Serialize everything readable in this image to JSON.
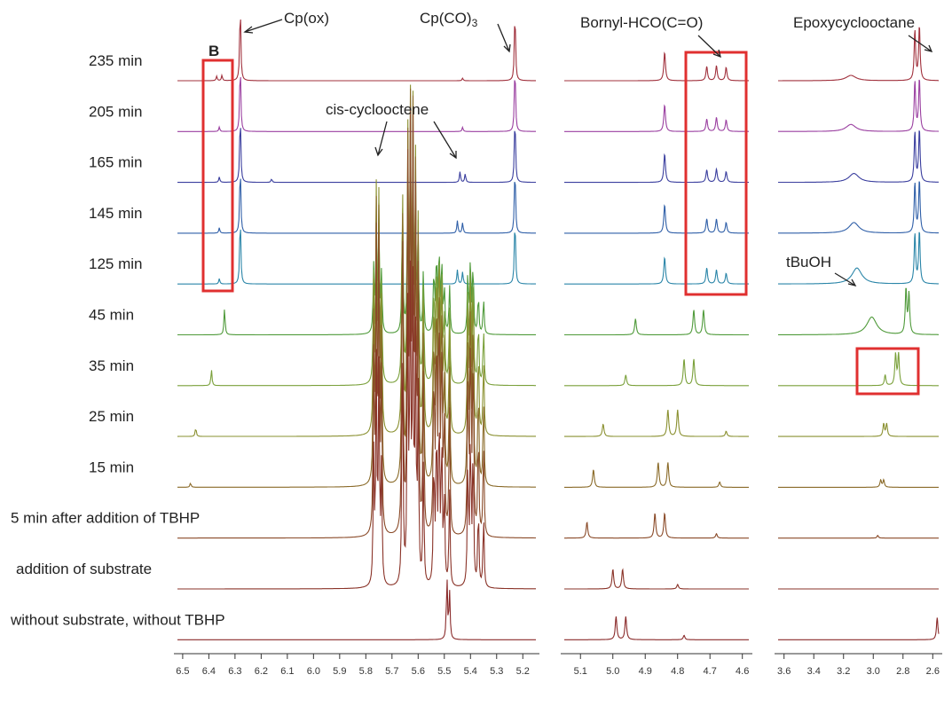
{
  "chart_data": {
    "type": "line",
    "title": "",
    "xlabel": "",
    "ylabel": "",
    "panels": [
      {
        "id": "left",
        "xlim": [
          6.52,
          5.15
        ],
        "ticks": [
          "6.5",
          "6.4",
          "6.3",
          "6.2",
          "6.1",
          "6.0",
          "5.9",
          "5.8",
          "5.7",
          "5.6",
          "5.5",
          "5.4",
          "5.3",
          "5.2"
        ],
        "tick_values": [
          6.5,
          6.4,
          6.3,
          6.2,
          6.1,
          6.0,
          5.9,
          5.8,
          5.7,
          5.6,
          5.5,
          5.4,
          5.3,
          5.2
        ]
      },
      {
        "id": "mid",
        "xlim": [
          5.15,
          4.58
        ],
        "ticks": [
          "5.1",
          "5.0",
          "4.9",
          "4.8",
          "4.7",
          "4.6"
        ],
        "tick_values": [
          5.1,
          5.0,
          4.9,
          4.8,
          4.7,
          4.6
        ]
      },
      {
        "id": "right",
        "xlim": [
          3.64,
          2.56
        ],
        "ticks": [
          "3.6",
          "3.4",
          "3.2",
          "3.0",
          "2.8",
          "2.6"
        ],
        "tick_values": [
          3.6,
          3.4,
          3.2,
          3.0,
          2.8,
          2.6
        ]
      }
    ],
    "series": [
      {
        "name": "235 min",
        "color": "#a0303c",
        "peaks": {
          "left": [
            [
              6.28,
              90
            ],
            [
              6.37,
              5
            ],
            [
              6.35,
              6
            ],
            [
              5.43,
              3
            ],
            [
              5.23,
              85
            ]
          ],
          "mid": [
            [
              4.84,
              32
            ],
            [
              4.71,
              16
            ],
            [
              4.68,
              17
            ],
            [
              4.65,
              15
            ]
          ],
          "right": [
            [
              3.15,
              6
            ],
            [
              2.72,
              55
            ],
            [
              2.69,
              60
            ]
          ]
        }
      },
      {
        "name": "205 min",
        "color": "#9a3fa0",
        "peaks": {
          "left": [
            [
              6.28,
              80
            ],
            [
              6.36,
              5
            ],
            [
              5.43,
              5
            ],
            [
              5.23,
              80
            ]
          ],
          "mid": [
            [
              4.84,
              30
            ],
            [
              4.71,
              14
            ],
            [
              4.68,
              16
            ],
            [
              4.65,
              13
            ]
          ],
          "right": [
            [
              3.15,
              8
            ],
            [
              2.72,
              55
            ],
            [
              2.69,
              58
            ]
          ]
        }
      },
      {
        "name": "165 min",
        "color": "#3a3e9e",
        "peaks": {
          "left": [
            [
              6.28,
              80
            ],
            [
              6.36,
              6
            ],
            [
              6.16,
              4
            ],
            [
              5.44,
              12
            ],
            [
              5.42,
              10
            ],
            [
              5.23,
              80
            ]
          ],
          "mid": [
            [
              4.84,
              32
            ],
            [
              4.71,
              14
            ],
            [
              4.68,
              15
            ],
            [
              4.65,
              12
            ]
          ],
          "right": [
            [
              3.13,
              10
            ],
            [
              2.72,
              55
            ],
            [
              2.69,
              58
            ]
          ]
        }
      },
      {
        "name": "145 min",
        "color": "#2f5fa8",
        "peaks": {
          "left": [
            [
              6.28,
              80
            ],
            [
              6.36,
              6
            ],
            [
              5.45,
              14
            ],
            [
              5.43,
              12
            ],
            [
              5.23,
              80
            ]
          ],
          "mid": [
            [
              4.84,
              32
            ],
            [
              4.71,
              16
            ],
            [
              4.68,
              16
            ],
            [
              4.65,
              12
            ]
          ],
          "right": [
            [
              3.13,
              12
            ],
            [
              2.72,
              55
            ],
            [
              2.69,
              58
            ]
          ]
        }
      },
      {
        "name": "125 min",
        "color": "#2a85a8",
        "peaks": {
          "left": [
            [
              6.28,
              80
            ],
            [
              6.36,
              6
            ],
            [
              5.45,
              16
            ],
            [
              5.43,
              14
            ],
            [
              5.23,
              80
            ]
          ],
          "mid": [
            [
              4.84,
              30
            ],
            [
              4.71,
              18
            ],
            [
              4.68,
              16
            ],
            [
              4.65,
              12
            ]
          ],
          "right": [
            [
              3.11,
              18
            ],
            [
              2.72,
              55
            ],
            [
              2.69,
              58
            ]
          ]
        }
      },
      {
        "name": "45 min",
        "color": "#4f9a3a",
        "peaks": {
          "left": [
            [
              6.34,
              30
            ]
          ],
          "mid": [
            [
              4.93,
              18
            ],
            [
              4.75,
              28
            ],
            [
              4.72,
              28
            ]
          ],
          "right": [
            [
              3.01,
              20
            ],
            [
              2.78,
              50
            ],
            [
              2.76,
              45
            ]
          ]
        }
      },
      {
        "name": "35 min",
        "color": "#7aa03a",
        "peaks": {
          "left": [
            [
              6.39,
              18
            ]
          ],
          "mid": [
            [
              4.96,
              12
            ],
            [
              4.78,
              30
            ],
            [
              4.75,
              30
            ]
          ],
          "right": [
            [
              2.92,
              12
            ],
            [
              2.85,
              35
            ],
            [
              2.83,
              35
            ]
          ]
        }
      },
      {
        "name": "25 min",
        "color": "#8a9030",
        "peaks": {
          "left": [
            [
              6.45,
              10
            ]
          ],
          "mid": [
            [
              5.03,
              14
            ],
            [
              4.83,
              30
            ],
            [
              4.8,
              30
            ],
            [
              4.65,
              6
            ]
          ],
          "right": [
            [
              2.93,
              14
            ],
            [
              2.91,
              14
            ]
          ]
        }
      },
      {
        "name": "15 min",
        "color": "#8a6a28",
        "peaks": {
          "left": [
            [
              6.47,
              5
            ]
          ],
          "mid": [
            [
              5.06,
              20
            ],
            [
              4.86,
              28
            ],
            [
              4.83,
              28
            ],
            [
              4.67,
              6
            ]
          ],
          "right": [
            [
              2.95,
              8
            ],
            [
              2.93,
              8
            ]
          ]
        }
      },
      {
        "name": "5 min after addition of TBHP",
        "color": "#8a4a28",
        "peaks": {
          "left": [],
          "mid": [
            [
              5.08,
              18
            ],
            [
              4.87,
              28
            ],
            [
              4.84,
              28
            ],
            [
              4.68,
              5
            ]
          ],
          "right": [
            [
              2.97,
              3
            ]
          ]
        }
      },
      {
        "name": "addition of substrate",
        "color": "#8a3328",
        "peaks": {
          "left": [],
          "mid": [
            [
              5.0,
              22
            ],
            [
              4.97,
              22
            ],
            [
              4.8,
              5
            ]
          ],
          "right": []
        }
      },
      {
        "name": "without substrate, without TBHP",
        "color": "#8a2a2a",
        "peaks": {
          "left": [
            [
              5.49,
              70
            ],
            [
              5.48,
              55
            ]
          ],
          "mid": [
            [
              4.99,
              26
            ],
            [
              4.96,
              26
            ],
            [
              4.78,
              5
            ]
          ],
          "right": [
            [
              2.57,
              25
            ]
          ]
        }
      }
    ],
    "cyclooctene_peaks": [
      [
        5.77,
        210
      ],
      [
        5.76,
        350
      ],
      [
        5.75,
        340
      ],
      [
        5.74,
        190
      ],
      [
        5.66,
        420
      ],
      [
        5.64,
        460
      ],
      [
        5.63,
        480
      ],
      [
        5.62,
        460
      ],
      [
        5.61,
        380
      ],
      [
        5.6,
        300
      ],
      [
        5.58,
        200
      ],
      [
        5.54,
        210
      ],
      [
        5.53,
        260
      ],
      [
        5.52,
        280
      ],
      [
        5.51,
        240
      ],
      [
        5.5,
        150
      ],
      [
        5.48,
        160
      ],
      [
        5.41,
        200
      ],
      [
        5.4,
        250
      ],
      [
        5.39,
        230
      ],
      [
        5.37,
        130
      ],
      [
        5.35,
        120
      ]
    ],
    "annotations": [
      "Cp(ox)",
      "Cp(CO)",
      "3",
      "cis-cyclooctene",
      "Bornyl-HCO(C=O)",
      "Epoxycyclooctane",
      "tBuOH",
      "B"
    ]
  }
}
